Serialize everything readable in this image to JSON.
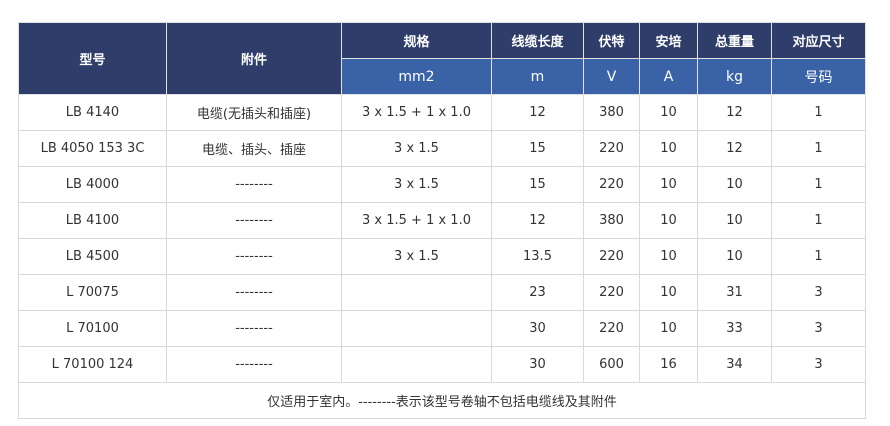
{
  "headers": {
    "model": "型号",
    "accessory": "附件",
    "spec": "规格",
    "length": "线缆长度",
    "volt": "伏特",
    "amp": "安培",
    "weight": "总重量",
    "size": "对应尺寸"
  },
  "units": {
    "spec": "mm2",
    "length": "m",
    "volt": "V",
    "amp": "A",
    "weight": "kg",
    "size": "号码"
  },
  "rows": [
    [
      "LB 4140",
      "电缆(无插头和插座)",
      "3 x 1.5 + 1 x 1.0",
      "12",
      "380",
      "10",
      "12",
      "1"
    ],
    [
      "LB 4050 153 3C",
      "电缆、插头、插座",
      "3 x 1.5",
      "15",
      "220",
      "10",
      "12",
      "1"
    ],
    [
      "LB 4000",
      "--------",
      "3 x 1.5",
      "15",
      "220",
      "10",
      "10",
      "1"
    ],
    [
      "LB 4100",
      "--------",
      "3 x 1.5 + 1 x 1.0",
      "12",
      "380",
      "10",
      "10",
      "1"
    ],
    [
      "LB 4500",
      "--------",
      "3 x 1.5",
      "13.5",
      "220",
      "10",
      "10",
      "1"
    ],
    [
      "L 70075",
      "--------",
      "",
      "23",
      "220",
      "10",
      "31",
      "3"
    ],
    [
      "L 70100",
      "--------",
      "",
      "30",
      "220",
      "10",
      "33",
      "3"
    ],
    [
      "L 70100 124",
      "--------",
      "",
      "30",
      "600",
      "16",
      "34",
      "3"
    ]
  ],
  "footer": "仅适用于室内。--------表示该型号卷轴不包括电缆线及其附件",
  "colors": {
    "header": "#2e3d69",
    "subheader": "#3a62a7"
  }
}
